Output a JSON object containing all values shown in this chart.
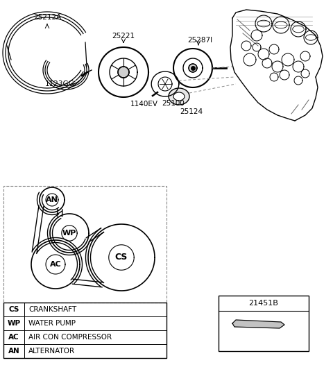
{
  "background_color": "#ffffff",
  "legend": [
    [
      "AN",
      "ALTERNATOR"
    ],
    [
      "AC",
      "AIR CON COMPRESSOR"
    ],
    [
      "WP",
      "WATER PUMP"
    ],
    [
      "CS",
      "CRANKSHAFT"
    ]
  ],
  "belt_label": "25212A",
  "pulley1_label": "25221",
  "pulley2_label": "25287I",
  "bolt1_label": "1123GG",
  "bolt2_label": "1140EV",
  "pump_label": "25100",
  "gasket_label": "25124",
  "part_label": "21451B"
}
